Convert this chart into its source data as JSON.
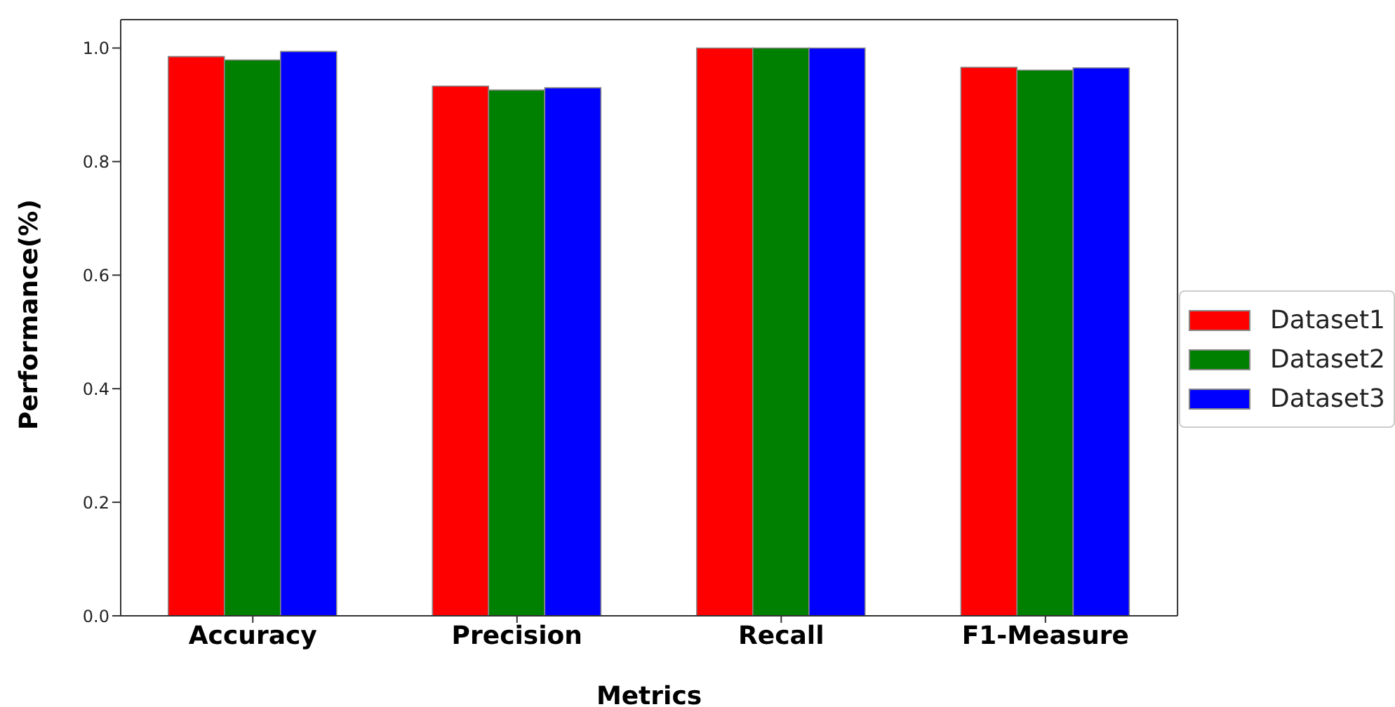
{
  "chart_data": {
    "type": "bar",
    "xlabel": "Metrics",
    "ylabel": "Performance(%)",
    "categories": [
      "Accuracy",
      "Precision",
      "Recall",
      "F1-Measure"
    ],
    "series": [
      {
        "name": "Dataset1",
        "color": "#ff0000",
        "values": [
          0.985,
          0.933,
          1.0,
          0.966
        ]
      },
      {
        "name": "Dataset2",
        "color": "#008000",
        "values": [
          0.979,
          0.926,
          1.0,
          0.961
        ]
      },
      {
        "name": "Dataset3",
        "color": "#0000ff",
        "values": [
          0.994,
          0.93,
          1.0,
          0.965
        ]
      }
    ],
    "ylim": [
      0,
      1.05
    ],
    "yticks": [
      {
        "value": 0,
        "label": "0.0"
      },
      0.2,
      0.4,
      0.6,
      0.8,
      {
        "value": 1,
        "label": "1.0"
      }
    ],
    "grid": false,
    "legend": "right"
  }
}
